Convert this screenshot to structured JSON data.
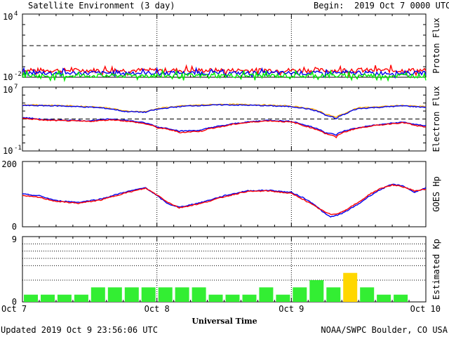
{
  "header": {
    "title": "Satellite Environment (3 day)",
    "begin_label": "Begin:",
    "begin_value": "2019 Oct 7 0000 UTC"
  },
  "footer": {
    "updated": "Updated 2019 Oct  9 23:56:06 UTC",
    "credit": "NOAA/SWPC Boulder, CO USA"
  },
  "x_axis": {
    "label": "Universal Time",
    "ticks": [
      "Oct 7",
      "Oct 8",
      "Oct 9",
      "Oct 10"
    ]
  },
  "colors": {
    "red": "#ff0000",
    "blue": "#0000ee",
    "green": "#00ee00",
    "orange": "#ffa500",
    "kp_green": "#33ee33",
    "kp_yellow": "#ffd700"
  },
  "chart_data": [
    {
      "type": "line",
      "ylabel": "Proton Flux",
      "y_scale": "log",
      "y_ticks": [
        {
          "base": "10",
          "exp": "4"
        },
        {
          "base": "10",
          "exp": "-2"
        }
      ],
      "ylim": [
        0.01,
        10000
      ],
      "reference_line": 10,
      "x_range_hours": [
        0,
        72
      ],
      "series": [
        {
          "color": "red",
          "level": 0.045,
          "noise": 0.35,
          "x": [
            0,
            72
          ],
          "y": [
            0.045,
            0.045
          ]
        },
        {
          "color": "blue",
          "level": 0.025,
          "noise": 0.3,
          "x": [
            0,
            72
          ],
          "y": [
            0.025,
            0.025
          ]
        },
        {
          "color": "green",
          "level": 0.014,
          "noise": 0.35,
          "x": [
            0,
            72
          ],
          "y": [
            0.014,
            0.014
          ]
        }
      ]
    },
    {
      "type": "line",
      "ylabel": "Electron Flux",
      "y_scale": "log",
      "y_ticks": [
        {
          "base": "10",
          "exp": "7"
        },
        {
          "base": "10",
          "exp": "-1"
        }
      ],
      "ylim": [
        0.1,
        10000000
      ],
      "reference_line": 1000,
      "series": [
        {
          "color": "orange",
          "x": [
            0,
            6,
            10,
            14,
            18,
            22,
            26,
            30,
            36,
            42,
            48,
            52,
            54,
            56,
            58,
            60,
            64,
            68,
            70,
            72
          ],
          "y": [
            60000,
            50000,
            40000,
            30000,
            10000,
            8000,
            30000,
            50000,
            70000,
            60000,
            40000,
            15000,
            4000,
            1500,
            6000,
            25000,
            35000,
            50000,
            40000,
            35000
          ]
        },
        {
          "color": "blue",
          "x": [
            0,
            6,
            10,
            14,
            18,
            22,
            26,
            30,
            36,
            42,
            48,
            52,
            54,
            56,
            58,
            60,
            64,
            68,
            70,
            72
          ],
          "y": [
            50000,
            45000,
            35000,
            25000,
            9000,
            7000,
            25000,
            45000,
            60000,
            50000,
            35000,
            12000,
            3000,
            1000,
            5000,
            20000,
            30000,
            45000,
            35000,
            30000
          ]
        },
        {
          "color": "blue",
          "x": [
            0,
            4,
            8,
            12,
            16,
            20,
            24,
            28,
            32,
            36,
            40,
            44,
            48,
            50,
            52,
            54,
            56,
            58,
            60,
            64,
            68,
            70,
            72
          ],
          "y": [
            1500,
            800,
            700,
            600,
            1000,
            500,
            100,
            30,
            40,
            150,
            400,
            700,
            500,
            200,
            80,
            20,
            10,
            40,
            80,
            200,
            400,
            200,
            150
          ]
        },
        {
          "color": "red",
          "x": [
            0,
            4,
            8,
            12,
            16,
            20,
            24,
            28,
            32,
            36,
            40,
            44,
            48,
            50,
            52,
            54,
            56,
            58,
            60,
            64,
            68,
            70,
            72
          ],
          "y": [
            1200,
            700,
            600,
            500,
            800,
            400,
            80,
            20,
            30,
            120,
            350,
            600,
            400,
            150,
            60,
            15,
            5,
            30,
            70,
            180,
            350,
            150,
            100
          ]
        }
      ]
    },
    {
      "type": "line",
      "ylabel": "GOES Hp",
      "y_ticks": [
        "200",
        "0"
      ],
      "ylim": [
        0,
        200
      ],
      "series": [
        {
          "color": "blue",
          "x": [
            0,
            3,
            6,
            10,
            14,
            18,
            22,
            24,
            26,
            28,
            32,
            36,
            40,
            44,
            48,
            50,
            52,
            54,
            55,
            56,
            57,
            58,
            60,
            62,
            64,
            66,
            68,
            70,
            72
          ],
          "y": [
            100,
            95,
            80,
            75,
            85,
            105,
            120,
            95,
            70,
            60,
            75,
            95,
            110,
            112,
            105,
            90,
            70,
            40,
            30,
            35,
            40,
            50,
            70,
            95,
            115,
            130,
            125,
            105,
            120
          ]
        },
        {
          "color": "red",
          "x": [
            0,
            3,
            6,
            10,
            14,
            18,
            22,
            24,
            26,
            28,
            32,
            36,
            40,
            44,
            48,
            50,
            52,
            54,
            55,
            56,
            57,
            58,
            60,
            62,
            64,
            66,
            68,
            70,
            72
          ],
          "y": [
            95,
            90,
            78,
            72,
            82,
            102,
            118,
            98,
            75,
            58,
            72,
            92,
            108,
            110,
            102,
            85,
            65,
            45,
            38,
            40,
            45,
            55,
            75,
            100,
            118,
            128,
            122,
            110,
            115
          ]
        }
      ]
    },
    {
      "type": "bar",
      "ylabel": "Estimated Kp",
      "y_ticks": [
        "9",
        "0"
      ],
      "ylim": [
        0,
        9
      ],
      "values": [
        1,
        1,
        1,
        1,
        2,
        2,
        2,
        2,
        2,
        2,
        2,
        1,
        1,
        1,
        2,
        1,
        2,
        3,
        2,
        4,
        2,
        1,
        1,
        0
      ],
      "bar_colors": [
        "kp_green",
        "kp_green",
        "kp_green",
        "kp_green",
        "kp_green",
        "kp_green",
        "kp_green",
        "kp_green",
        "kp_green",
        "kp_green",
        "kp_green",
        "kp_green",
        "kp_green",
        "kp_green",
        "kp_green",
        "kp_green",
        "kp_green",
        "kp_green",
        "kp_green",
        "kp_yellow",
        "kp_green",
        "kp_green",
        "kp_green",
        "kp_green"
      ]
    }
  ]
}
